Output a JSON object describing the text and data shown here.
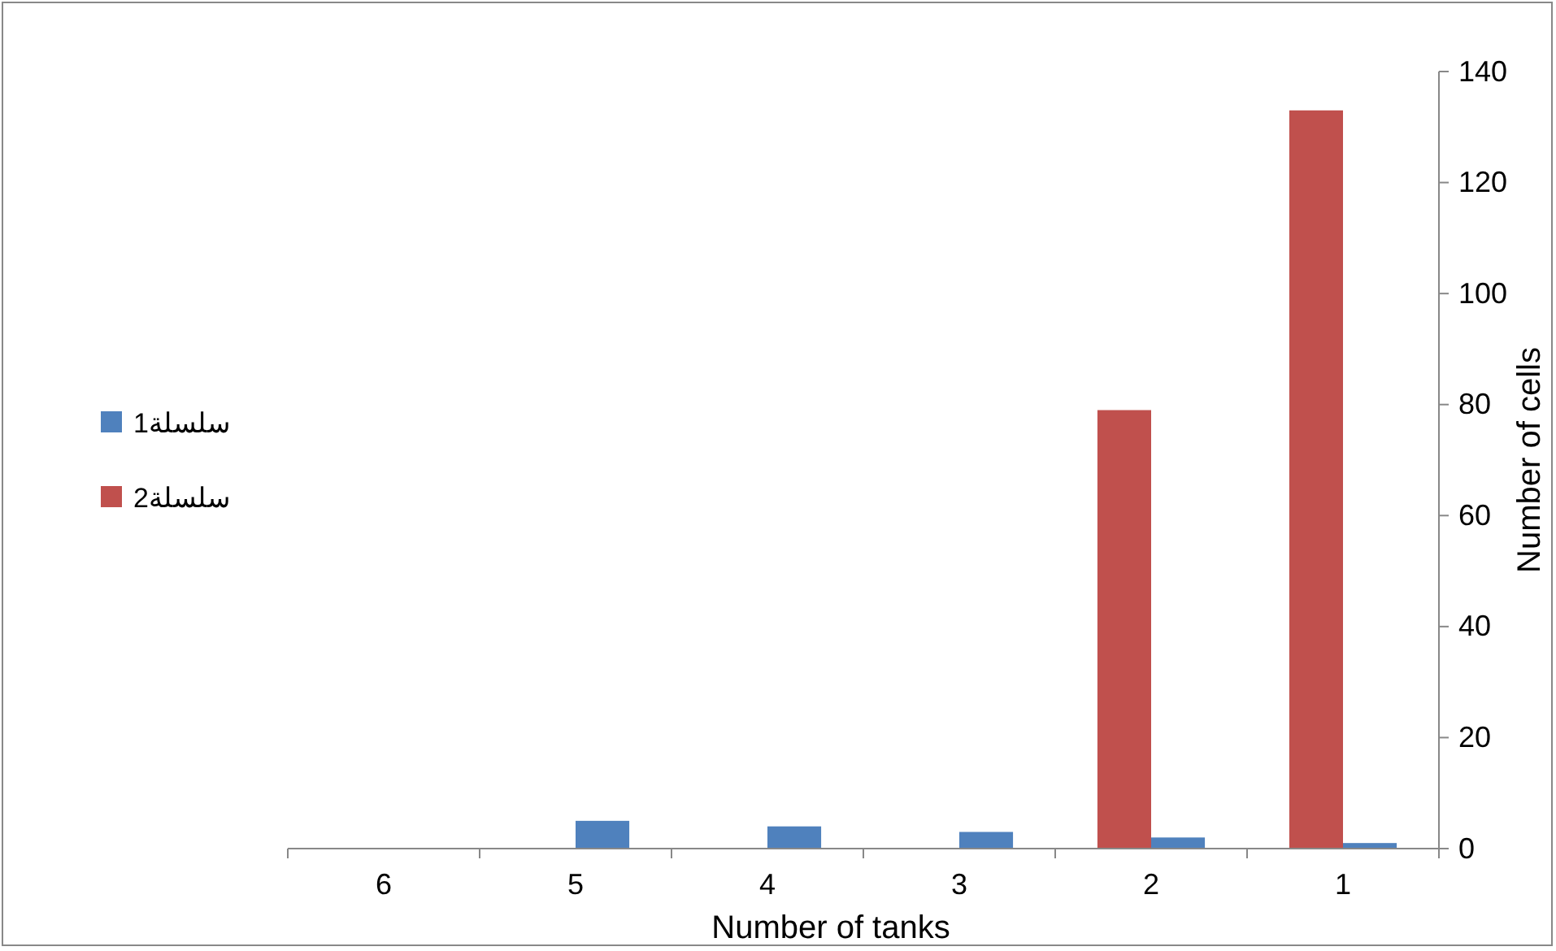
{
  "chart_data": {
    "type": "bar",
    "xlabel": "Number of tanks",
    "ylabel": "Number of cells",
    "categories": [
      "6",
      "5",
      "4",
      "3",
      "2",
      "1"
    ],
    "series": [
      {
        "name": "سلسلة1",
        "color": "#4f81bd",
        "values": [
          0,
          5,
          4,
          3,
          2,
          1
        ]
      },
      {
        "name": "سلسلة2",
        "color": "#c0504d",
        "values": [
          0,
          0,
          0,
          0,
          79,
          133
        ]
      }
    ],
    "ylim": [
      0,
      140
    ],
    "yticks": [
      0,
      20,
      40,
      60,
      80,
      100,
      120,
      140
    ],
    "legend": "left",
    "grid": false
  }
}
